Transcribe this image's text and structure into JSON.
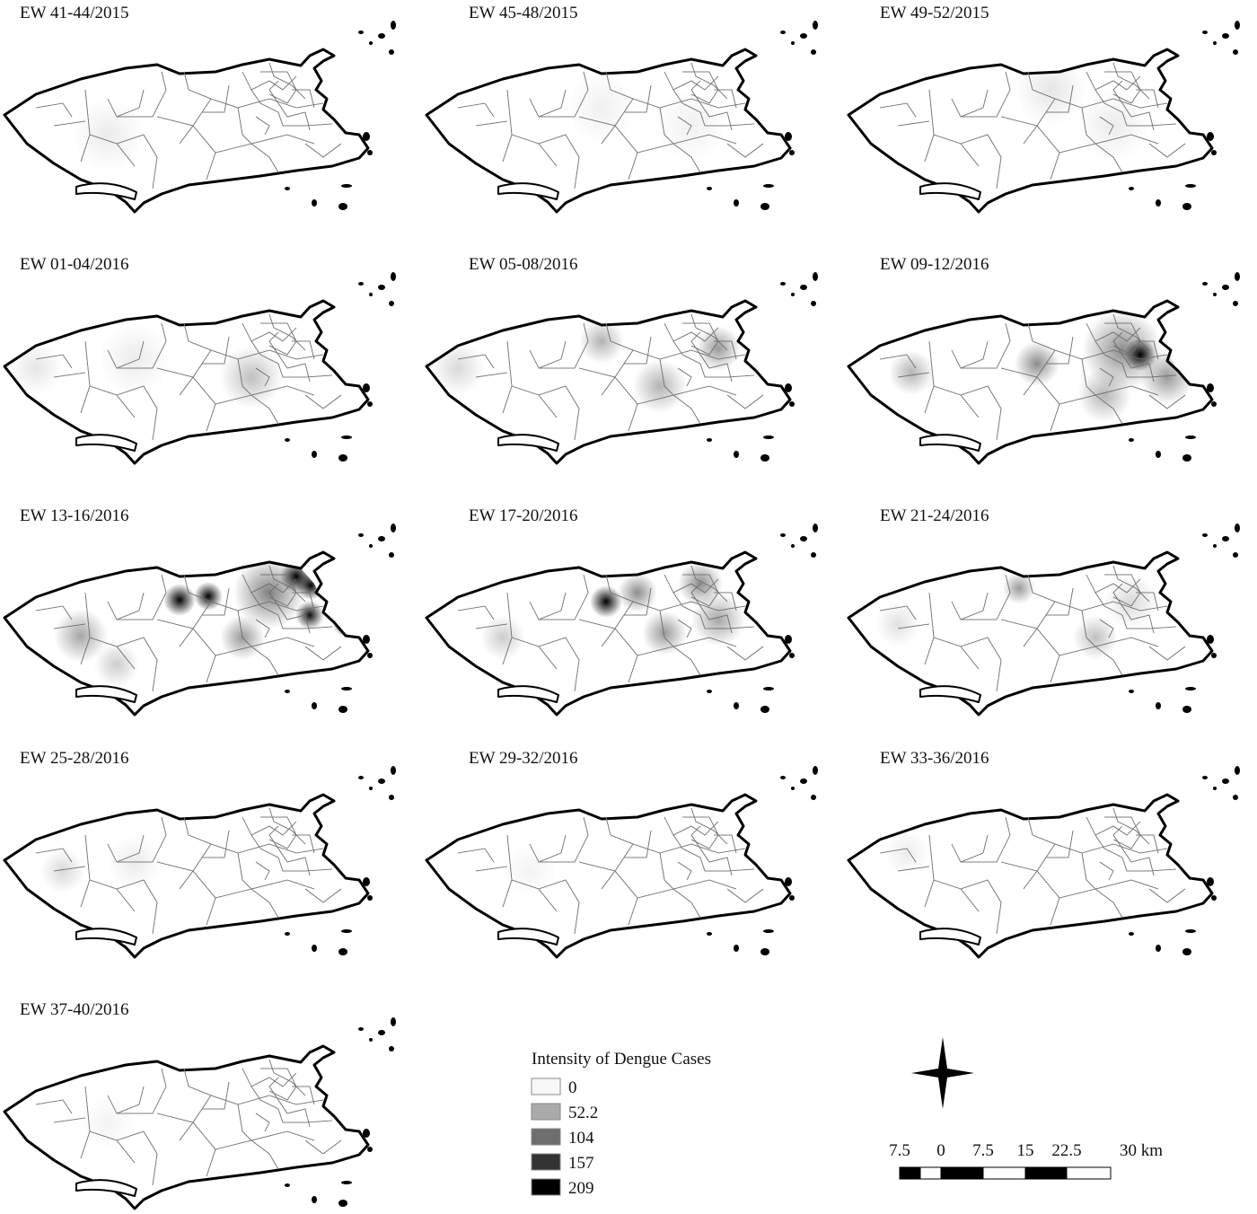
{
  "panels": [
    {
      "title": "EW 41-44/2015"
    },
    {
      "title": "EW 45-48/2015"
    },
    {
      "title": "EW 49-52/2015"
    },
    {
      "title": "EW 01-04/2016"
    },
    {
      "title": "EW 05-08/2016"
    },
    {
      "title": "EW 09-12/2016"
    },
    {
      "title": "EW 13-16/2016"
    },
    {
      "title": "EW 17-20/2016"
    },
    {
      "title": "EW 21-24/2016"
    },
    {
      "title": "EW 25-28/2016"
    },
    {
      "title": "EW 29-32/2016"
    },
    {
      "title": "EW 33-36/2016"
    },
    {
      "title": "EW 37-40/2016"
    }
  ],
  "legend": {
    "title": "Intensity of Dengue Cases",
    "values": [
      0,
      52.2,
      104,
      157,
      209
    ],
    "colors": [
      "#f7f7f7",
      "#aaaaaa",
      "#6e6e6e",
      "#333333",
      "#000000"
    ]
  },
  "scale_bar": {
    "labels": [
      "7.5",
      "0",
      "7.5",
      "15",
      "22.5",
      "30 km"
    ]
  }
}
